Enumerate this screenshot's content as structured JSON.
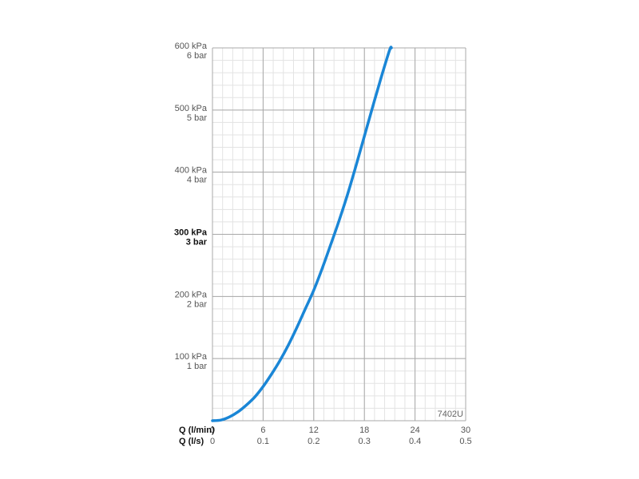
{
  "chart_data": {
    "type": "line",
    "code_label": "7402U",
    "x_axis": {
      "name_primary": "Q (l/min)",
      "name_secondary": "Q (l/s)",
      "range": [
        0,
        30
      ],
      "ticks_primary": [
        "0",
        "6",
        "12",
        "18",
        "24",
        "30"
      ],
      "ticks_secondary": [
        "0",
        "0.1",
        "0.2",
        "0.3",
        "0.4",
        "0.5"
      ]
    },
    "y_axis": {
      "range": [
        0,
        600
      ],
      "unit": "kPa",
      "ticks": [
        {
          "value": 100,
          "kpa": "100 kPa",
          "bar": "1 bar",
          "bold": false
        },
        {
          "value": 200,
          "kpa": "200 kPa",
          "bar": "2 bar",
          "bold": false
        },
        {
          "value": 300,
          "kpa": "300 kPa",
          "bar": "3 bar",
          "bold": true
        },
        {
          "value": 400,
          "kpa": "400 kPa",
          "bar": "4 bar",
          "bold": false
        },
        {
          "value": 500,
          "kpa": "500 kPa",
          "bar": "5 bar",
          "bold": false
        },
        {
          "value": 600,
          "kpa": "600 kPa",
          "bar": "6 bar",
          "bold": false
        }
      ]
    },
    "grid": true,
    "series": [
      {
        "color": "#1a86d6",
        "x": [
          0,
          1,
          2,
          3,
          4,
          5,
          6,
          7,
          8,
          9,
          10,
          11,
          12,
          13,
          14,
          15,
          16,
          17,
          18,
          19,
          20,
          21,
          21.2
        ],
        "y": [
          0,
          1,
          6,
          14,
          25,
          38,
          55,
          75,
          97,
          122,
          150,
          180,
          210,
          245,
          283,
          322,
          364,
          410,
          458,
          506,
          553,
          597,
          600
        ]
      }
    ]
  }
}
